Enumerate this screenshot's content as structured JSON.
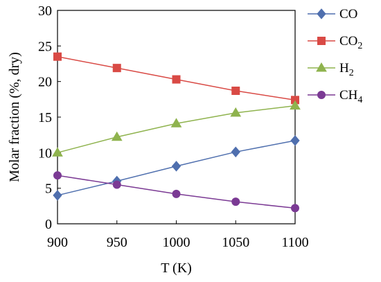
{
  "chart_data": {
    "type": "line",
    "xlabel": "T (K)",
    "ylabel": "Molar fraction  (%, dry)",
    "x": [
      900,
      950,
      1000,
      1050,
      1100
    ],
    "xlim": [
      900,
      1100
    ],
    "ylim": [
      0,
      30
    ],
    "xticks": [
      "900",
      "950",
      "1000",
      "1050",
      "1100"
    ],
    "yticks": [
      "0",
      "5",
      "10",
      "15",
      "20",
      "25",
      "30"
    ],
    "grid": false,
    "legend_position": "right",
    "series": [
      {
        "name_main": "CO",
        "name_sub": "",
        "marker": "diamond",
        "color": "#4F6FAE",
        "values": [
          4.0,
          6.0,
          8.1,
          10.1,
          11.7
        ]
      },
      {
        "name_main": "CO",
        "name_sub": "2",
        "marker": "square",
        "color": "#D94A45",
        "values": [
          23.5,
          21.9,
          20.3,
          18.7,
          17.4
        ]
      },
      {
        "name_main": "H",
        "name_sub": "2",
        "marker": "triangle",
        "color": "#8FB34E",
        "values": [
          10.0,
          12.2,
          14.1,
          15.6,
          16.6
        ]
      },
      {
        "name_main": "CH",
        "name_sub": "4",
        "marker": "circle",
        "color": "#7B3A94",
        "values": [
          6.8,
          5.5,
          4.2,
          3.1,
          2.2
        ]
      }
    ]
  }
}
